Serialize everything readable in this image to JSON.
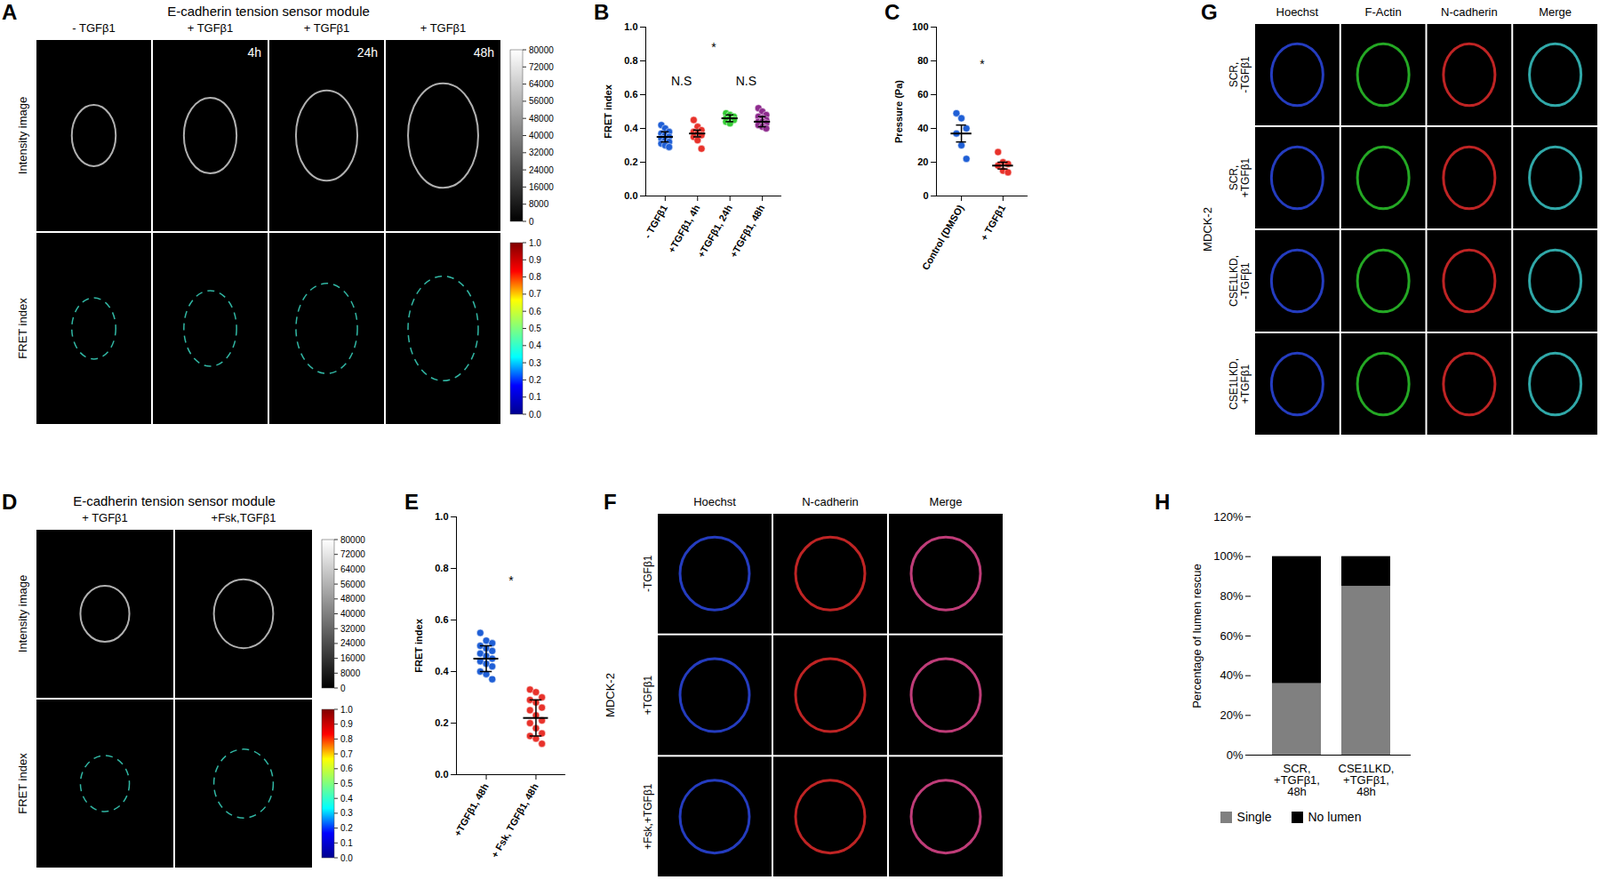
{
  "chart_data": [
    {
      "type": "scatter",
      "title": "B",
      "ylabel": "FRET index",
      "categories": [
        "- TGFβ1",
        "+TGFβ1, 4h",
        "+TGFβ1, 24h",
        "+TGFβ1, 48h"
      ],
      "colors": [
        "#1f5fd6",
        "#e8322b",
        "#33cc33",
        "#8e2b8e"
      ],
      "values": [
        [
          0.42,
          0.4,
          0.38,
          0.37,
          0.36,
          0.35,
          0.34,
          0.33,
          0.32,
          0.31,
          0.3,
          0.29
        ],
        [
          0.45,
          0.41,
          0.39,
          0.38,
          0.37,
          0.36,
          0.35,
          0.33,
          0.28
        ],
        [
          0.49,
          0.48,
          0.47,
          0.46,
          0.46,
          0.45,
          0.44,
          0.43
        ],
        [
          0.52,
          0.5,
          0.48,
          0.47,
          0.46,
          0.45,
          0.44,
          0.44,
          0.43,
          0.42,
          0.41,
          0.4
        ]
      ],
      "means": [
        0.35,
        0.37,
        0.46,
        0.44
      ],
      "errors": [
        0.03,
        0.02,
        0.02,
        0.03
      ],
      "ylim": [
        0,
        1
      ],
      "yticks": [
        {
          "value": 0,
          "label": "0.0"
        },
        0.2,
        0.4,
        0.6,
        0.8,
        {
          "value": 1,
          "label": "1.0"
        }
      ],
      "annotations": [
        {
          "text": "N.S",
          "x": 0.5,
          "y": 0.68
        },
        {
          "text": "*",
          "x": 1.5,
          "y": 0.88
        },
        {
          "text": "N.S",
          "x": 2.5,
          "y": 0.68
        }
      ]
    },
    {
      "type": "scatter",
      "title": "C",
      "ylabel": "Pressure (Pa)",
      "categories": [
        "Control (DMSO)",
        "+ TGFβ1"
      ],
      "colors": [
        "#1f5fd6",
        "#e8322b"
      ],
      "values": [
        [
          49,
          46,
          40,
          37,
          30,
          22
        ],
        [
          26,
          20,
          19,
          18,
          15,
          14
        ]
      ],
      "means": [
        37,
        18
      ],
      "errors": [
        5,
        2
      ],
      "ylim": [
        0,
        100
      ],
      "yticks": [
        0,
        20,
        40,
        60,
        80,
        100
      ],
      "annotations": [
        {
          "text": "*",
          "x": 0.5,
          "y": 78
        }
      ]
    },
    {
      "type": "scatter",
      "title": "E",
      "ylabel": "FRET index",
      "categories": [
        "+TGFβ1, 48h",
        "+ Fsk, TGFβ1, 48h"
      ],
      "colors": [
        "#1f5fd6",
        "#e8322b"
      ],
      "values": [
        [
          0.55,
          0.52,
          0.51,
          0.5,
          0.49,
          0.48,
          0.47,
          0.46,
          0.45,
          0.44,
          0.43,
          0.42,
          0.4,
          0.39,
          0.37
        ],
        [
          0.33,
          0.32,
          0.3,
          0.29,
          0.28,
          0.26,
          0.25,
          0.23,
          0.21,
          0.2,
          0.18,
          0.16,
          0.15,
          0.14,
          0.12
        ]
      ],
      "means": [
        0.45,
        0.22
      ],
      "errors": [
        0.05,
        0.07
      ],
      "ylim": [
        0,
        1
      ],
      "yticks": [
        {
          "value": 0,
          "label": "0.0"
        },
        0.2,
        0.4,
        0.6,
        0.8,
        {
          "value": 1,
          "label": "1.0"
        }
      ],
      "annotations": [
        {
          "text": "*",
          "x": 0.5,
          "y": 0.75
        }
      ]
    },
    {
      "type": "bar",
      "title": "H",
      "ylabel": "Percentage of lumen rescue",
      "stacked": true,
      "categories": [
        "SCR, +TGFβ1, 48h",
        "CSE1LKD, +TGFβ1, 48h"
      ],
      "series": [
        {
          "name": "Single",
          "color": "#808080",
          "values": [
            36,
            85
          ]
        },
        {
          "name": "No lumen",
          "color": "#000000",
          "values": [
            64,
            15
          ]
        }
      ],
      "ylim": [
        0,
        120
      ],
      "yticks": [
        {
          "value": 0,
          "label": "0%"
        },
        {
          "value": 20,
          "label": "20%"
        },
        {
          "value": 40,
          "label": "40%"
        },
        {
          "value": 60,
          "label": "60%"
        },
        {
          "value": 80,
          "label": "80%"
        },
        {
          "value": 100,
          "label": "100%"
        },
        {
          "value": 120,
          "label": "120%"
        }
      ],
      "legend": "bottom"
    }
  ],
  "image_panels": [
    {
      "letter": "A",
      "title": "E-cadherin tension sensor module",
      "columns": [
        {
          "label": "- TGFβ1"
        },
        {
          "label": "+ TGFβ1",
          "time": "4h"
        },
        {
          "label": "+ TGFβ1",
          "time": "24h"
        },
        {
          "label": "+ TGFβ1",
          "time": "48h"
        }
      ],
      "rows": [
        "Intensity image",
        "FRET index"
      ],
      "colorbars": [
        {
          "range": [
            0,
            80000
          ],
          "ticks": [
            80000,
            72000,
            64000,
            56000,
            48000,
            40000,
            32000,
            24000,
            16000,
            8000,
            0
          ]
        },
        {
          "range": [
            0,
            1
          ],
          "ticks": [
            {
              "value": 1,
              "label": "1.0"
            },
            0.9,
            0.8,
            0.7,
            0.6,
            0.5,
            0.4,
            0.3,
            0.2,
            0.1,
            {
              "value": 0,
              "label": "0.0"
            }
          ]
        }
      ]
    },
    {
      "letter": "D",
      "title": "E-cadherin tension sensor module",
      "columns": [
        {
          "label": "+ TGFβ1"
        },
        {
          "label": "+Fsk,TGFβ1"
        }
      ],
      "rows": [
        "Intensity image",
        "FRET index"
      ],
      "colorbars": [
        {
          "range": [
            0,
            80000
          ],
          "ticks": [
            80000,
            72000,
            64000,
            56000,
            48000,
            40000,
            32000,
            24000,
            16000,
            8000,
            0
          ]
        },
        {
          "range": [
            0,
            1
          ],
          "ticks": [
            {
              "value": 1,
              "label": "1.0"
            },
            0.9,
            0.8,
            0.7,
            0.6,
            0.5,
            0.4,
            0.3,
            0.2,
            0.1,
            {
              "value": 0,
              "label": "0.0"
            }
          ]
        }
      ]
    },
    {
      "letter": "F",
      "group": "MDCK-2",
      "columns": [
        "Hoechst",
        "N-cadherin",
        "Merge"
      ],
      "rows": [
        "-TGFβ1",
        "+TGFβ1",
        "+Fsk,+TGFβ1"
      ]
    },
    {
      "letter": "G",
      "group": "MDCK-2",
      "columns": [
        "Hoechst",
        "F-Actin",
        "N-cadherin",
        "Merge"
      ],
      "rows": [
        "SCR, -TGFβ1",
        "SCR, +TGFβ1",
        "CSE1LKD, -TGFβ1",
        "CSE1LKD, +TGFβ1"
      ]
    }
  ]
}
